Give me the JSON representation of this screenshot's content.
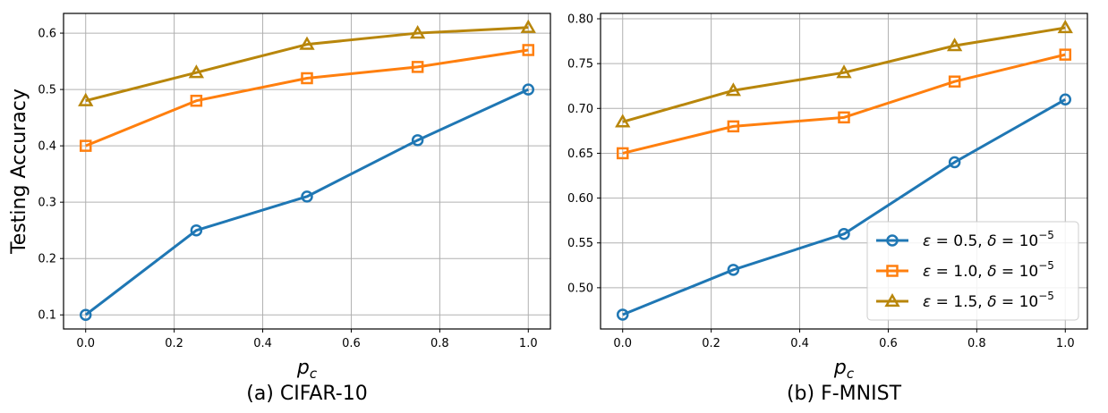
{
  "chart_data": [
    {
      "type": "line",
      "caption": "(a) CIFAR-10",
      "xlabel": "p",
      "xlabel_sub": "c",
      "ylabel": "Testing Accuracy",
      "x": [
        0.0,
        0.25,
        0.5,
        0.75,
        1.0
      ],
      "xlim": [
        -0.05,
        1.05
      ],
      "ylim": [
        0.075,
        0.635
      ],
      "xticks": [
        0.0,
        0.2,
        0.4,
        0.6,
        0.8,
        1.0
      ],
      "xtick_labels": [
        "0.0",
        "0.2",
        "0.4",
        "0.6",
        "0.8",
        "1.0"
      ],
      "yticks": [
        0.1,
        0.2,
        0.3,
        0.4,
        0.5,
        0.6
      ],
      "ytick_labels": [
        "0.1",
        "0.2",
        "0.3",
        "0.4",
        "0.5",
        "0.6"
      ],
      "grid": true,
      "legend": false,
      "series": [
        {
          "name": "ε = 0.5, δ = 10^-5",
          "marker": "circle",
          "color": "#1f77b4",
          "values": [
            0.1,
            0.25,
            0.31,
            0.41,
            0.5
          ]
        },
        {
          "name": "ε = 1.0, δ = 10^-5",
          "marker": "square",
          "color": "#ff7f0e",
          "values": [
            0.4,
            0.48,
            0.52,
            0.54,
            0.57
          ]
        },
        {
          "name": "ε = 1.5, δ = 10^-5",
          "marker": "triangle",
          "color": "#b8860b",
          "values": [
            0.48,
            0.53,
            0.58,
            0.6,
            0.61
          ]
        }
      ]
    },
    {
      "type": "line",
      "caption": "(b) F-MNIST",
      "xlabel": "p",
      "xlabel_sub": "c",
      "ylabel": "",
      "x": [
        0.0,
        0.25,
        0.5,
        0.75,
        1.0
      ],
      "xlim": [
        -0.05,
        1.05
      ],
      "ylim": [
        0.454,
        0.806
      ],
      "xticks": [
        0.0,
        0.2,
        0.4,
        0.6,
        0.8,
        1.0
      ],
      "xtick_labels": [
        "0.0",
        "0.2",
        "0.4",
        "0.6",
        "0.8",
        "1.0"
      ],
      "yticks": [
        0.5,
        0.55,
        0.6,
        0.65,
        0.7,
        0.75,
        0.8
      ],
      "ytick_labels": [
        "0.50",
        "0.55",
        "0.60",
        "0.65",
        "0.70",
        "0.75",
        "0.80"
      ],
      "grid": true,
      "legend": true,
      "legend_position": "lower-right",
      "series": [
        {
          "name": "ε = 0.5, δ = 10^-5",
          "marker": "circle",
          "color": "#1f77b4",
          "values": [
            0.47,
            0.52,
            0.56,
            0.64,
            0.71
          ]
        },
        {
          "name": "ε = 1.0, δ = 10^-5",
          "marker": "square",
          "color": "#ff7f0e",
          "values": [
            0.65,
            0.68,
            0.69,
            0.73,
            0.76
          ]
        },
        {
          "name": "ε = 1.5, δ = 10^-5",
          "marker": "triangle",
          "color": "#b8860b",
          "values": [
            0.685,
            0.72,
            0.74,
            0.77,
            0.79
          ]
        }
      ]
    }
  ],
  "legend": {
    "entries": [
      {
        "eps_value": "0.5",
        "delta_base": "10",
        "delta_exp": "−5"
      },
      {
        "eps_value": "1.0",
        "delta_base": "10",
        "delta_exp": "−5"
      },
      {
        "eps_value": "1.5",
        "delta_base": "10",
        "delta_exp": "−5"
      }
    ]
  }
}
